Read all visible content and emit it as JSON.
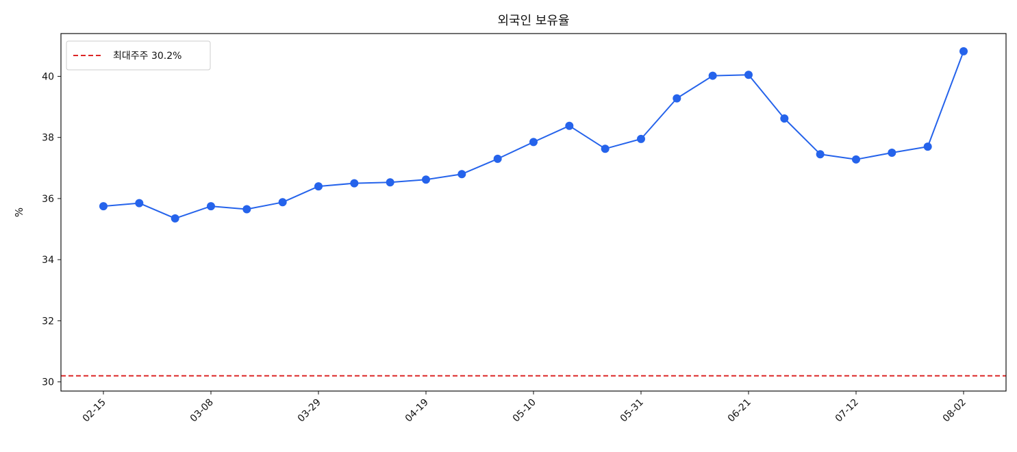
{
  "chart_data": {
    "type": "line",
    "title": "외국인 보유율",
    "xlabel": "",
    "ylabel": "%",
    "x_ticks": [
      "02-15",
      "03-08",
      "03-29",
      "04-19",
      "05-10",
      "05-31",
      "06-21",
      "07-12",
      "08-02"
    ],
    "x": [
      "02-15",
      "02-22",
      "03-01",
      "03-08",
      "03-15",
      "03-22",
      "03-29",
      "04-05",
      "04-12",
      "04-19",
      "04-26",
      "05-03",
      "05-10",
      "05-17",
      "05-24",
      "05-31",
      "06-07",
      "06-14",
      "06-21",
      "06-28",
      "07-05",
      "07-12",
      "07-19",
      "07-26",
      "08-02"
    ],
    "series": [
      {
        "values": [
          35.75,
          35.85,
          35.35,
          35.75,
          35.65,
          35.88,
          36.4,
          36.5,
          36.53,
          36.62,
          36.8,
          37.3,
          37.85,
          38.38,
          37.63,
          37.95,
          39.28,
          40.02,
          40.05,
          38.62,
          37.45,
          37.28,
          37.5,
          37.7,
          40.82
        ],
        "color": "#2563eb"
      }
    ],
    "reference_line": {
      "label": "최대주주 30.2%",
      "value": 30.2,
      "color": "#dc2626"
    },
    "ylim": [
      29.7,
      41.4
    ],
    "y_ticks": [
      30,
      32,
      34,
      36,
      38,
      40
    ],
    "legend_position": "top-left",
    "grid": false
  }
}
